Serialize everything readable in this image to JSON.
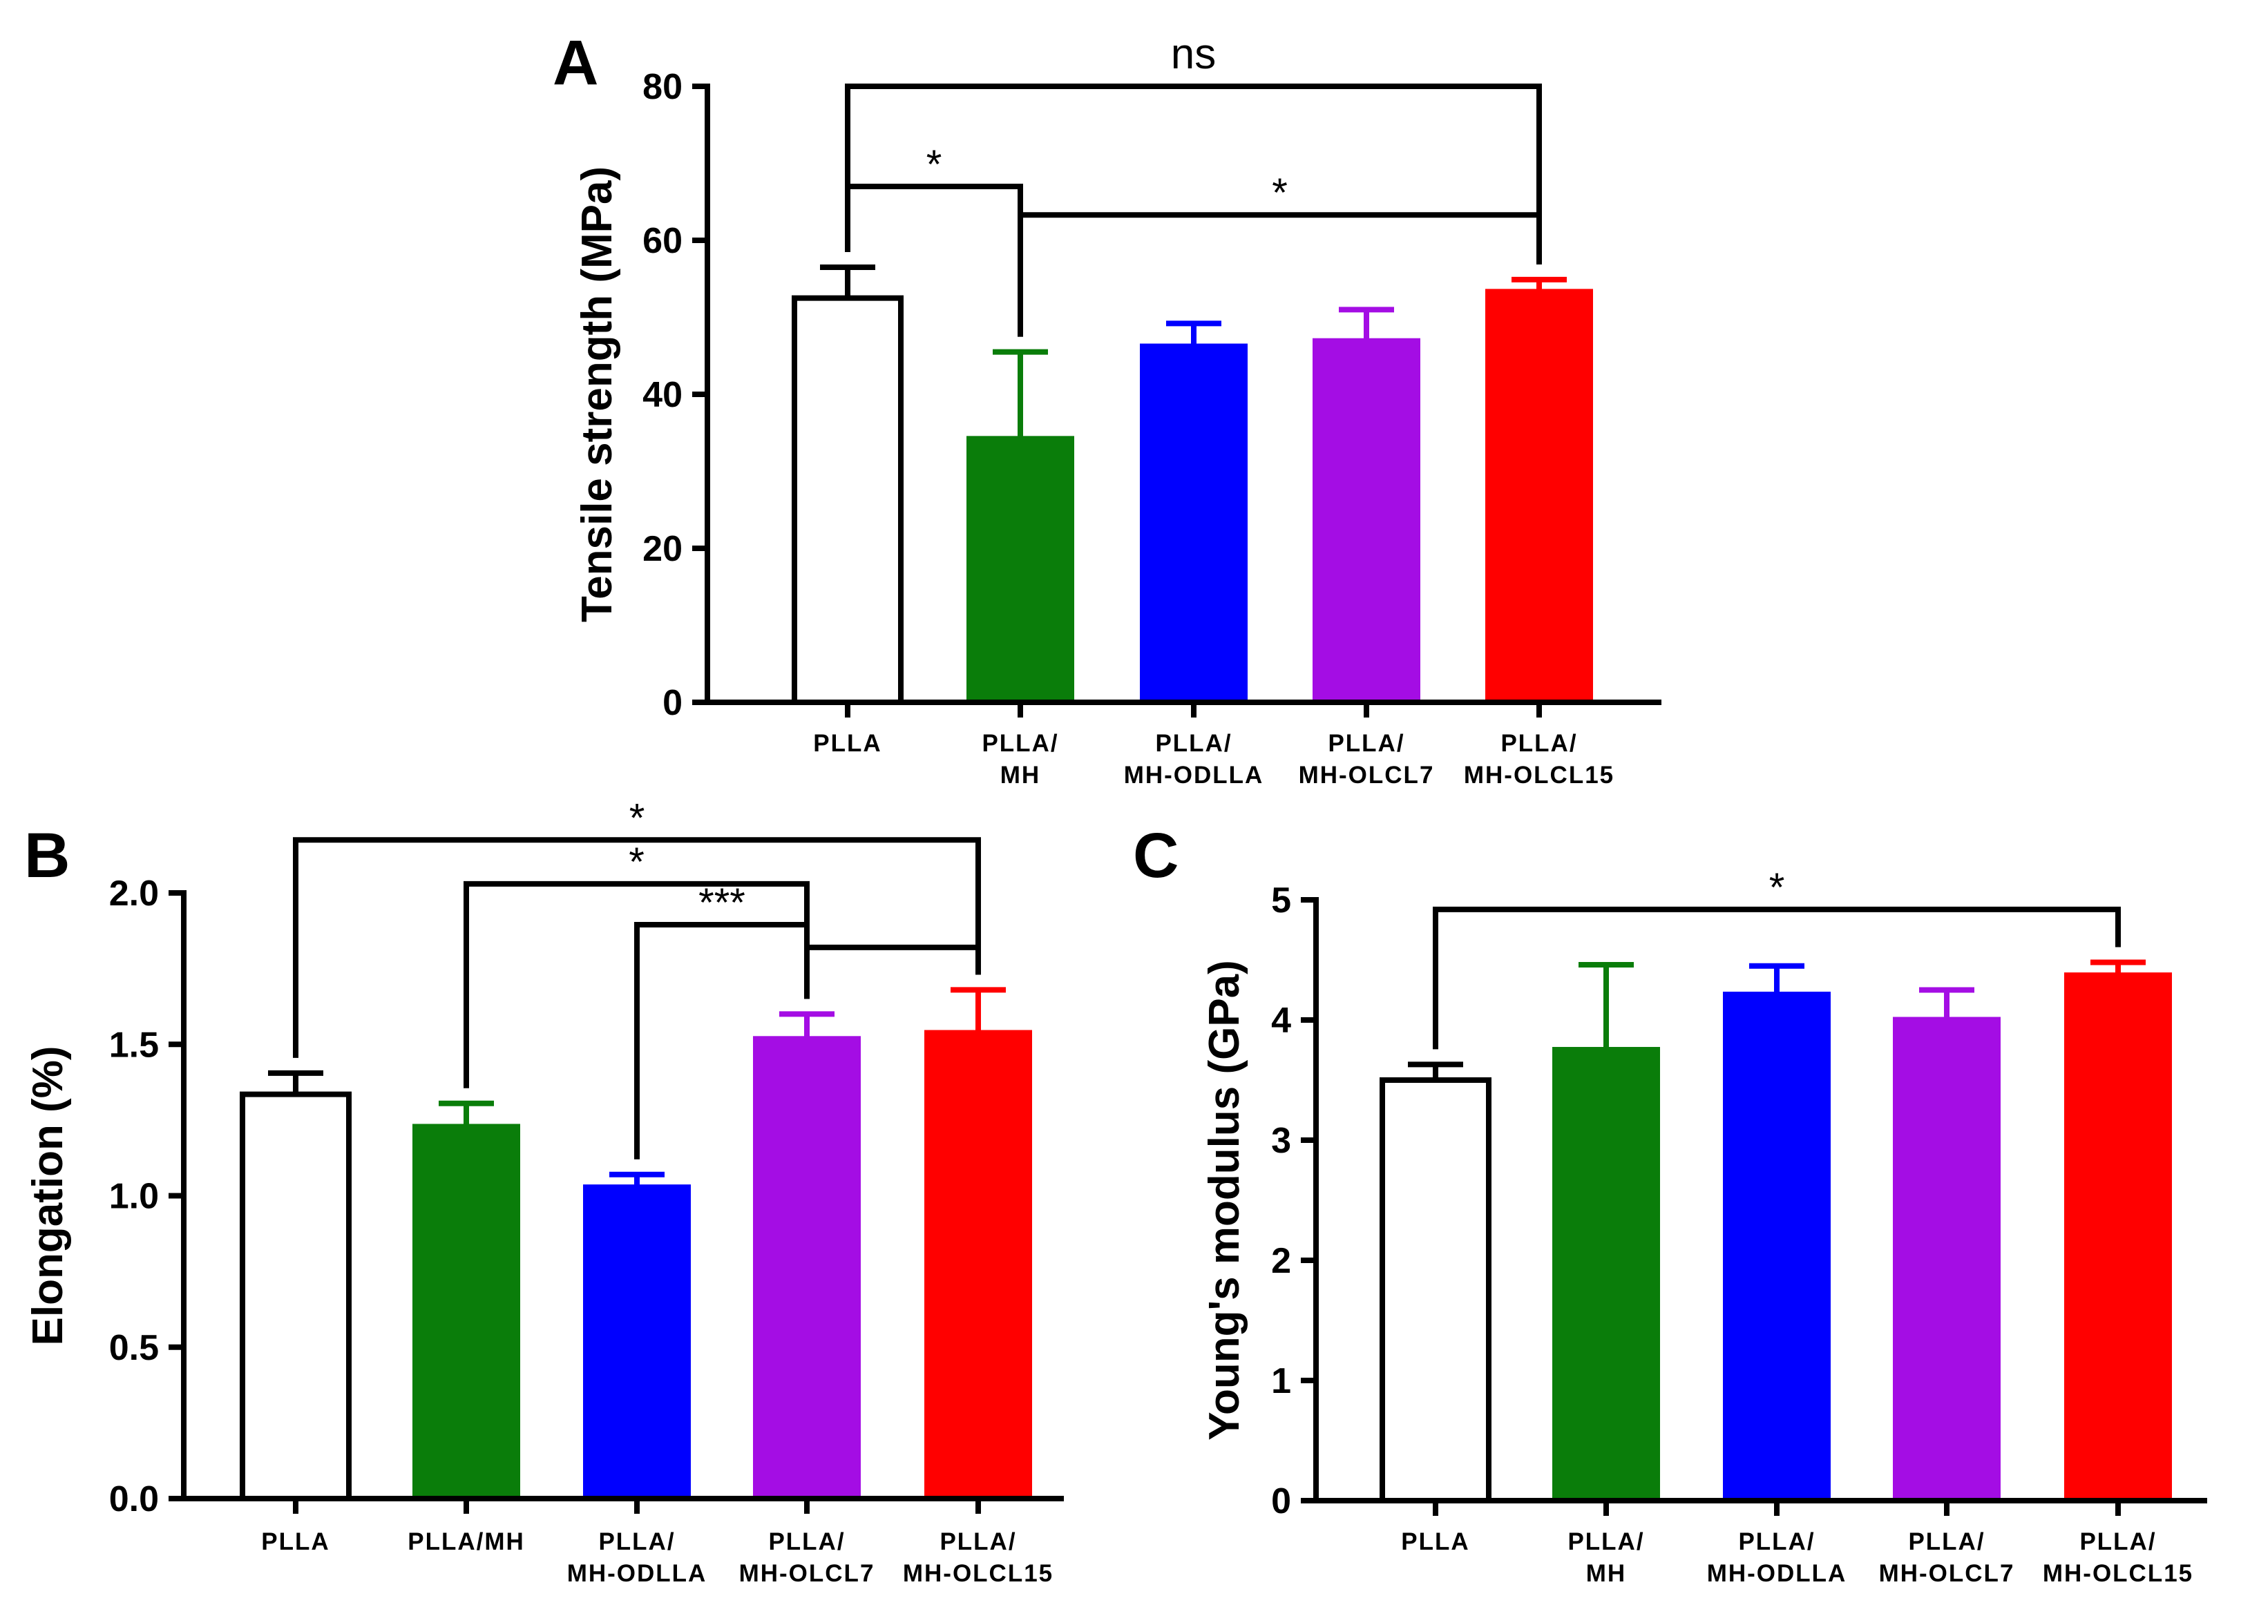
{
  "chart_data": [
    {
      "panel": "A",
      "type": "bar",
      "ylabel": "Tensile strength (MPa)",
      "xlabel": "",
      "ylim": [
        0,
        80
      ],
      "yticks": [
        "0",
        "20",
        "40",
        "60",
        "80"
      ],
      "categories": [
        [
          "PLLA"
        ],
        [
          "PLLA/",
          "MH"
        ],
        [
          "PLLA/",
          "MH-ODLLA"
        ],
        [
          "PLLA/",
          "MH-OLCL7"
        ],
        [
          "PLLA/",
          "MH-OLCL15"
        ]
      ],
      "values": [
        52.5,
        34.5,
        46.5,
        47.2,
        53.6
      ],
      "errors": [
        4.0,
        11.0,
        2.7,
        3.8,
        1.3
      ],
      "significance": [
        {
          "from": 0,
          "to": 4,
          "label": "ns",
          "level": 80
        },
        {
          "from": 0,
          "to": 1,
          "label": "*",
          "level": 67
        },
        {
          "from": 1,
          "to": 4,
          "label": "*",
          "level": 63.3
        }
      ]
    },
    {
      "panel": "B",
      "type": "bar",
      "ylabel": "Elongation (%)",
      "xlabel": "",
      "ylim": [
        0,
        2.0
      ],
      "yticks": [
        "0.0",
        "0.5",
        "1.0",
        "1.5",
        "2.0"
      ],
      "categories": [
        [
          "PLLA"
        ],
        [
          "PLLA/MH"
        ],
        [
          "PLLA/",
          "MH-ODLLA"
        ],
        [
          "PLLA/",
          "MH-OLCL7"
        ],
        [
          "PLLA/",
          "MH-OLCL15"
        ]
      ],
      "values": [
        1.335,
        1.235,
        1.035,
        1.525,
        1.545
      ],
      "errors": [
        0.07,
        0.07,
        0.035,
        0.075,
        0.135
      ],
      "significance": [
        {
          "from": 0,
          "to": 4,
          "label": "*",
          "level": 2.175
        },
        {
          "from": 1,
          "to": 3,
          "label": "*",
          "level": 2.03
        },
        {
          "from": 2,
          "to": 3,
          "label": "***",
          "level": 1.895
        },
        {
          "from": 3,
          "to": 4,
          "label": "",
          "level": 1.82
        }
      ]
    },
    {
      "panel": "C",
      "type": "bar",
      "ylabel": "Young's modulus (GPa)",
      "xlabel": "",
      "ylim": [
        0,
        5
      ],
      "yticks": [
        "0",
        "1",
        "2",
        "3",
        "4",
        "5"
      ],
      "categories": [
        [
          "PLLA"
        ],
        [
          "PLLA/",
          "MH"
        ],
        [
          "PLLA/",
          "MH-ODLLA"
        ],
        [
          "PLLA/",
          "MH-OLCL7"
        ],
        [
          "PLLA/",
          "MH-OLCL15"
        ]
      ],
      "values": [
        3.5,
        3.77,
        4.23,
        4.02,
        4.39
      ],
      "errors": [
        0.13,
        0.69,
        0.22,
        0.23,
        0.09
      ],
      "significance": [
        {
          "from": 0,
          "to": 4,
          "label": "*",
          "level": 4.92
        }
      ]
    }
  ],
  "colors": {
    "series": [
      "#ffffff",
      "#0a7d0a",
      "#0000ff",
      "#a40de4",
      "#ff0000"
    ],
    "axis": "#000000"
  }
}
